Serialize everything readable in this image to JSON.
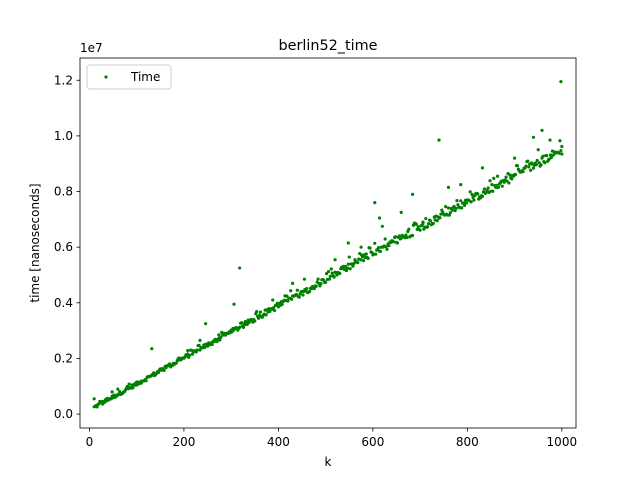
{
  "chart_data": {
    "type": "scatter",
    "title": "berlin52_time",
    "xlabel": "k",
    "ylabel": "time [nanoseconds]",
    "y_offset_label": "1e7",
    "xlim": [
      -20,
      1030
    ],
    "ylim": [
      -0.05,
      1.28
    ],
    "x_ticks": [
      {
        "value": 0,
        "label": "0"
      },
      {
        "value": 200,
        "label": "200"
      },
      {
        "value": 400,
        "label": "400"
      },
      {
        "value": 600,
        "label": "600"
      },
      {
        "value": 800,
        "label": "800"
      },
      {
        "value": 1000,
        "label": "1000"
      }
    ],
    "y_ticks": [
      {
        "value": 0.0,
        "label": "0.0"
      },
      {
        "value": 0.2,
        "label": "0.2"
      },
      {
        "value": 0.4,
        "label": "0.4"
      },
      {
        "value": 0.6,
        "label": "0.6"
      },
      {
        "value": 0.8,
        "label": "0.8"
      },
      {
        "value": 1.0,
        "label": "1.0"
      },
      {
        "value": 1.2,
        "label": "1.2"
      }
    ],
    "grid": false,
    "legend": {
      "position": "top-left",
      "entries": [
        "Time"
      ]
    },
    "series": [
      {
        "name": "Time",
        "color": "#008000",
        "trend": {
          "x_start": 10,
          "x_end": 1000,
          "step": 2,
          "y_per_k": 0.000935,
          "y_base": 0.015
        },
        "points": [
          {
            "x": 10,
            "y": 0.055
          },
          {
            "x": 24,
            "y": 0.045
          },
          {
            "x": 48,
            "y": 0.08
          },
          {
            "x": 60,
            "y": 0.09
          },
          {
            "x": 84,
            "y": 0.108
          },
          {
            "x": 110,
            "y": 0.118
          },
          {
            "x": 132,
            "y": 0.235
          },
          {
            "x": 168,
            "y": 0.175
          },
          {
            "x": 188,
            "y": 0.2
          },
          {
            "x": 208,
            "y": 0.228
          },
          {
            "x": 234,
            "y": 0.265
          },
          {
            "x": 246,
            "y": 0.325
          },
          {
            "x": 274,
            "y": 0.285
          },
          {
            "x": 306,
            "y": 0.395
          },
          {
            "x": 318,
            "y": 0.525
          },
          {
            "x": 328,
            "y": 0.325
          },
          {
            "x": 388,
            "y": 0.41
          },
          {
            "x": 430,
            "y": 0.47
          },
          {
            "x": 455,
            "y": 0.485
          },
          {
            "x": 520,
            "y": 0.555
          },
          {
            "x": 548,
            "y": 0.615
          },
          {
            "x": 575,
            "y": 0.6
          },
          {
            "x": 604,
            "y": 0.76
          },
          {
            "x": 614,
            "y": 0.705
          },
          {
            "x": 620,
            "y": 0.675
          },
          {
            "x": 660,
            "y": 0.725
          },
          {
            "x": 684,
            "y": 0.79
          },
          {
            "x": 706,
            "y": 0.69
          },
          {
            "x": 740,
            "y": 0.985
          },
          {
            "x": 760,
            "y": 0.815
          },
          {
            "x": 786,
            "y": 0.825
          },
          {
            "x": 832,
            "y": 0.885
          },
          {
            "x": 864,
            "y": 0.855
          },
          {
            "x": 900,
            "y": 0.92
          },
          {
            "x": 940,
            "y": 0.995
          },
          {
            "x": 958,
            "y": 1.02
          },
          {
            "x": 975,
            "y": 0.985
          },
          {
            "x": 998,
            "y": 1.195
          },
          {
            "x": 1000,
            "y": 0.935
          }
        ]
      }
    ]
  }
}
